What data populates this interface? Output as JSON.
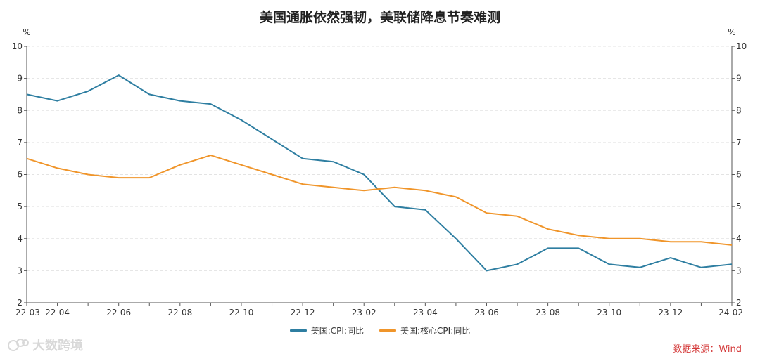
{
  "title": "美国通胀依然强韧，美联储降息节奏难测",
  "source": "数据来源：Wind",
  "watermark": "大数跨境",
  "colors": {
    "cpi": "#2e7ea1",
    "core": "#f0952a",
    "grid": "#e3e3e3",
    "axis": "#555555"
  },
  "chart_data": {
    "type": "line",
    "y_unit_left": "%",
    "y_unit_right": "%",
    "ylim": [
      2,
      10
    ],
    "yticks": [
      2,
      3,
      4,
      5,
      6,
      7,
      8,
      9,
      10
    ],
    "x": [
      "22-03",
      "22-04",
      "22-05",
      "22-06",
      "22-07",
      "22-08",
      "22-09",
      "22-10",
      "22-11",
      "22-12",
      "23-01",
      "23-02",
      "23-03",
      "23-04",
      "23-05",
      "23-06",
      "23-07",
      "23-08",
      "23-09",
      "23-10",
      "23-11",
      "23-12",
      "24-01",
      "24-02"
    ],
    "xtick_labels": [
      "22-03",
      "22-04",
      "22-06",
      "22-08",
      "22-10",
      "22-12",
      "23-02",
      "23-04",
      "23-06",
      "23-08",
      "23-10",
      "23-12",
      "24-02"
    ],
    "grid": true,
    "legend_position": "bottom",
    "series": [
      {
        "name": "美国:CPI:同比",
        "color_key": "cpi",
        "values": [
          8.5,
          8.3,
          8.6,
          9.1,
          8.5,
          8.3,
          8.2,
          7.7,
          7.1,
          6.5,
          6.4,
          6.0,
          5.0,
          4.9,
          4.0,
          3.0,
          3.2,
          3.7,
          3.7,
          3.2,
          3.1,
          3.4,
          3.1,
          3.2
        ]
      },
      {
        "name": "美国:核心CPI:同比",
        "color_key": "core",
        "values": [
          6.5,
          6.2,
          6.0,
          5.9,
          5.9,
          6.3,
          6.6,
          6.3,
          6.0,
          5.7,
          5.6,
          5.5,
          5.6,
          5.5,
          5.3,
          4.8,
          4.7,
          4.3,
          4.1,
          4.0,
          4.0,
          3.9,
          3.9,
          3.8
        ]
      }
    ]
  }
}
